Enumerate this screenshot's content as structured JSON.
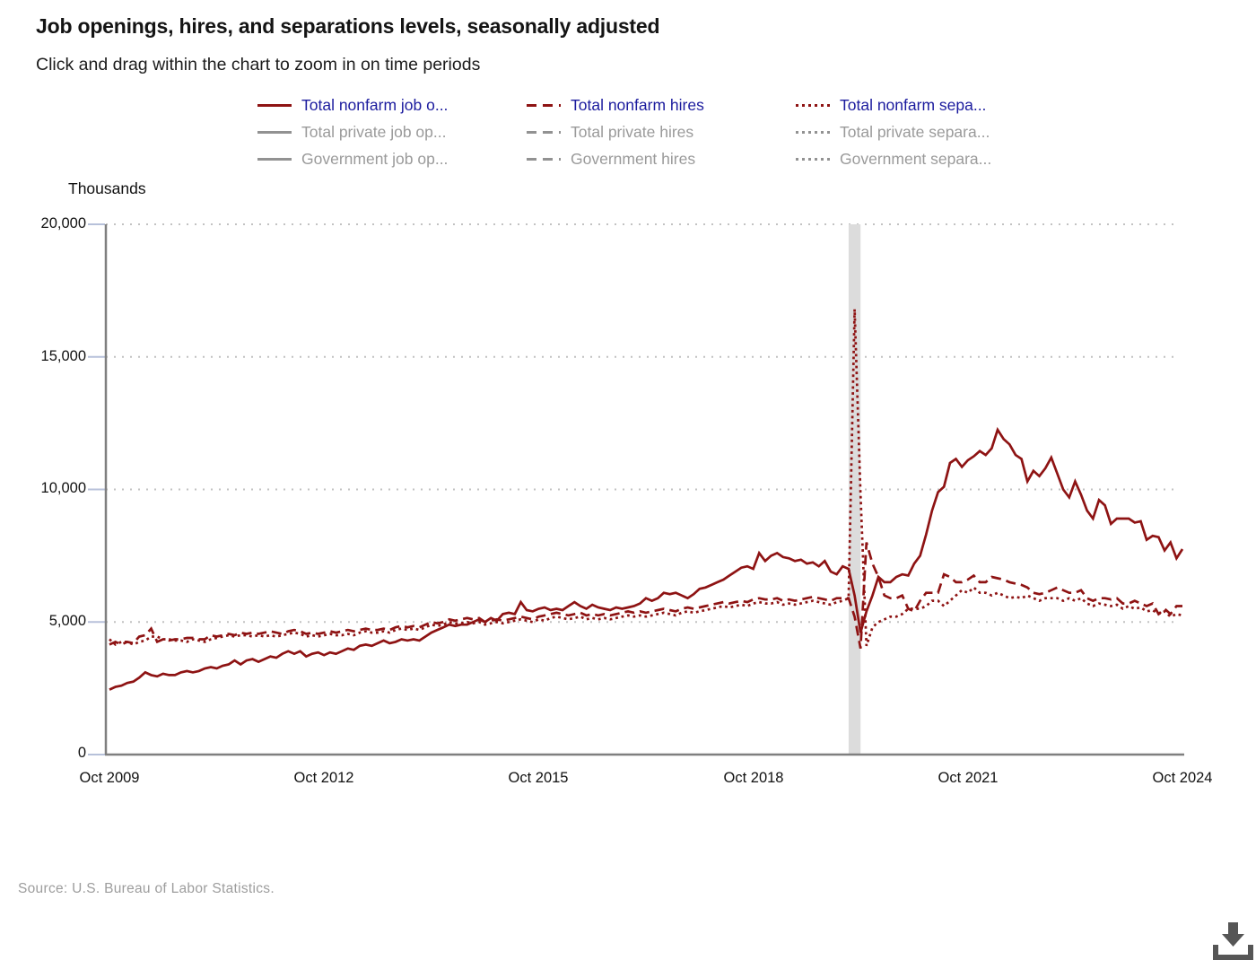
{
  "page": {
    "title": "Job openings, hires, and separations levels, seasonally adjusted",
    "subtitle": "Click and drag within the chart to zoom in on time periods",
    "source": "Source: U.S. Bureau of Labor Statistics."
  },
  "colors": {
    "series_red": "#8e1313",
    "inactive_gray": "#929292",
    "legend_active_text": "#1b1b9e",
    "legend_inactive_text": "#9a9a9a",
    "axis": "#7f7f7f",
    "gridline": "#c2c2c2",
    "tick_mark": "#b7c1da",
    "recession_band": "#dcdcdc",
    "download_icon": "#565656"
  },
  "legend": {
    "columns": [
      {
        "style": "solid",
        "items": [
          {
            "label": "Total nonfarm job o...",
            "active": true
          },
          {
            "label": "Total private job op...",
            "active": false
          },
          {
            "label": "Government job op...",
            "active": false
          }
        ]
      },
      {
        "style": "dashed",
        "items": [
          {
            "label": "Total nonfarm hires",
            "active": true
          },
          {
            "label": "Total private hires",
            "active": false
          },
          {
            "label": "Government hires",
            "active": false
          }
        ]
      },
      {
        "style": "dotted",
        "items": [
          {
            "label": "Total nonfarm sepa...",
            "active": true
          },
          {
            "label": "Total private separa...",
            "active": false
          },
          {
            "label": "Government separa...",
            "active": false
          }
        ]
      }
    ]
  },
  "chart_data": {
    "type": "line",
    "unit_label": "Thousands",
    "ylim": [
      0,
      20000
    ],
    "y_ticks": [
      "0",
      "5,000",
      "10,000",
      "15,000",
      "20,000"
    ],
    "y_tick_values": [
      0,
      5000,
      10000,
      15000,
      20000
    ],
    "x_tick_labels": [
      "Oct 2009",
      "Oct 2012",
      "Oct 2015",
      "Oct 2018",
      "Oct 2021",
      "Oct 2024"
    ],
    "frequency": "monthly",
    "x_start": "Oct 2009",
    "x_end": "Oct 2024",
    "n_points": 181,
    "grid": "dotted-horizontal",
    "legend_position": "top",
    "recession_band": {
      "from": "Feb 2020",
      "to": "Apr 2020",
      "from_index": 124,
      "to_index": 126
    },
    "series": [
      {
        "name": "Total nonfarm job openings",
        "line_style": "solid",
        "values": [
          2450,
          2550,
          2600,
          2700,
          2750,
          2900,
          3100,
          3000,
          2950,
          3050,
          3000,
          3000,
          3100,
          3150,
          3100,
          3150,
          3250,
          3300,
          3250,
          3350,
          3400,
          3550,
          3400,
          3550,
          3600,
          3500,
          3600,
          3700,
          3650,
          3800,
          3900,
          3800,
          3900,
          3700,
          3800,
          3850,
          3750,
          3850,
          3800,
          3900,
          4000,
          3950,
          4100,
          4150,
          4100,
          4200,
          4300,
          4200,
          4250,
          4350,
          4300,
          4350,
          4300,
          4450,
          4600,
          4700,
          4800,
          4900,
          4850,
          4900,
          4900,
          5000,
          5100,
          5000,
          5150,
          5050,
          5300,
          5350,
          5300,
          5750,
          5450,
          5400,
          5500,
          5550,
          5450,
          5500,
          5450,
          5600,
          5750,
          5600,
          5500,
          5650,
          5550,
          5500,
          5450,
          5550,
          5500,
          5550,
          5600,
          5700,
          5900,
          5800,
          5900,
          6100,
          6050,
          6100,
          6000,
          5900,
          6050,
          6250,
          6300,
          6400,
          6500,
          6600,
          6750,
          6900,
          7050,
          7100,
          7000,
          7600,
          7300,
          7500,
          7600,
          7450,
          7400,
          7300,
          7350,
          7200,
          7250,
          7100,
          7300,
          6900,
          6800,
          7100,
          7000,
          6000,
          4600,
          5400,
          6000,
          6700,
          6500,
          6500,
          6700,
          6800,
          6750,
          7200,
          7500,
          8300,
          9200,
          9900,
          10100,
          11000,
          11150,
          10850,
          11100,
          11250,
          11450,
          11300,
          11550,
          12250,
          11900,
          11700,
          11300,
          11150,
          10300,
          10700,
          10500,
          10800,
          11200,
          10600,
          10000,
          9700,
          10300,
          9800,
          9200,
          8900,
          9600,
          9400,
          8700,
          8900,
          8900,
          8900,
          8750,
          8800,
          8100,
          8250,
          8200,
          7700,
          8000,
          7400,
          7750
        ]
      },
      {
        "name": "Total nonfarm hires",
        "line_style": "dashed",
        "values": [
          4150,
          4250,
          4150,
          4250,
          4200,
          4450,
          4500,
          4750,
          4250,
          4350,
          4300,
          4350,
          4350,
          4400,
          4400,
          4350,
          4350,
          4500,
          4450,
          4500,
          4550,
          4500,
          4600,
          4550,
          4600,
          4550,
          4600,
          4650,
          4600,
          4550,
          4650,
          4700,
          4650,
          4550,
          4600,
          4550,
          4600,
          4650,
          4600,
          4650,
          4700,
          4650,
          4700,
          4750,
          4700,
          4700,
          4750,
          4700,
          4800,
          4850,
          4800,
          4850,
          4800,
          4900,
          5000,
          4950,
          5000,
          5100,
          5050,
          5100,
          5150,
          5100,
          5150,
          5000,
          5050,
          5100,
          5050,
          5100,
          5150,
          5200,
          5150,
          5100,
          5200,
          5250,
          5300,
          5350,
          5300,
          5250,
          5300,
          5350,
          5250,
          5300,
          5250,
          5300,
          5250,
          5300,
          5350,
          5400,
          5350,
          5400,
          5350,
          5400,
          5450,
          5500,
          5450,
          5400,
          5500,
          5550,
          5500,
          5550,
          5600,
          5650,
          5700,
          5750,
          5700,
          5750,
          5800,
          5750,
          5850,
          5900,
          5850,
          5850,
          5900,
          5800,
          5850,
          5800,
          5850,
          5900,
          5950,
          5900,
          5850,
          5800,
          5900,
          5900,
          5900,
          5200,
          4000,
          8000,
          7200,
          6700,
          6000,
          5900,
          5900,
          6000,
          5500,
          5400,
          5800,
          6100,
          6100,
          6100,
          6800,
          6700,
          6500,
          6500,
          6600,
          6750,
          6500,
          6500,
          6700,
          6650,
          6600,
          6500,
          6450,
          6400,
          6300,
          6100,
          6050,
          6100,
          6200,
          6300,
          6200,
          6100,
          6100,
          6200,
          5900,
          5800,
          5900,
          5900,
          5850,
          5900,
          5700,
          5700,
          5800,
          5700,
          5600,
          5700,
          5300,
          5500,
          5300,
          5600,
          5600
        ]
      },
      {
        "name": "Total nonfarm separations",
        "line_style": "dotted",
        "values": [
          4350,
          4150,
          4250,
          4250,
          4150,
          4250,
          4300,
          4450,
          4450,
          4350,
          4350,
          4300,
          4300,
          4250,
          4350,
          4300,
          4250,
          4350,
          4400,
          4450,
          4500,
          4450,
          4500,
          4500,
          4450,
          4500,
          4450,
          4500,
          4450,
          4500,
          4550,
          4600,
          4550,
          4450,
          4500,
          4450,
          4500,
          4550,
          4500,
          4500,
          4550,
          4500,
          4600,
          4650,
          4600,
          4600,
          4650,
          4600,
          4700,
          4750,
          4700,
          4750,
          4700,
          4800,
          4900,
          4850,
          4900,
          5000,
          4950,
          4950,
          5000,
          4950,
          5000,
          4900,
          4950,
          5000,
          4950,
          5000,
          5050,
          5100,
          5050,
          5000,
          5100,
          5050,
          5150,
          5200,
          5150,
          5100,
          5150,
          5200,
          5100,
          5150,
          5100,
          5150,
          5100,
          5150,
          5200,
          5250,
          5200,
          5250,
          5200,
          5250,
          5300,
          5350,
          5300,
          5250,
          5350,
          5400,
          5350,
          5400,
          5450,
          5500,
          5550,
          5600,
          5550,
          5600,
          5650,
          5600,
          5700,
          5750,
          5700,
          5700,
          5750,
          5650,
          5700,
          5650,
          5700,
          5750,
          5800,
          5750,
          5700,
          5650,
          5750,
          5800,
          5900,
          16800,
          9800,
          4100,
          4800,
          5000,
          5100,
          5200,
          5200,
          5300,
          5500,
          5500,
          5500,
          5600,
          5800,
          5800,
          5600,
          5800,
          6000,
          6200,
          6100,
          6300,
          6100,
          6100,
          6000,
          6100,
          6000,
          5900,
          5950,
          5900,
          6000,
          5900,
          5800,
          5900,
          5900,
          5900,
          5800,
          5900,
          5800,
          5900,
          5700,
          5600,
          5700,
          5650,
          5600,
          5650,
          5500,
          5600,
          5500,
          5550,
          5400,
          5450,
          5300,
          5400,
          5200,
          5300,
          5250
        ]
      }
    ]
  }
}
